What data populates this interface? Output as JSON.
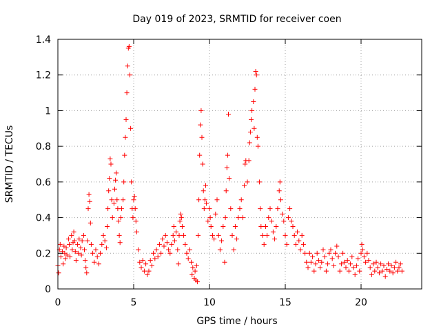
{
  "chart_data": {
    "type": "scatter",
    "title": "Day 019 of 2023, SRMTID for receiver coen",
    "xlabel": "GPS time / hours",
    "ylabel": "SRMTID / TECUs",
    "xlim": [
      0,
      24
    ],
    "ylim": [
      0,
      1.4
    ],
    "xticks": [
      0,
      5,
      10,
      15,
      20
    ],
    "xtick_labels": [
      "0",
      "5",
      "10",
      "15",
      "20"
    ],
    "yticks": [
      0,
      0.2,
      0.4,
      0.6,
      0.8,
      1.0,
      1.2,
      1.4
    ],
    "ytick_labels": [
      "0",
      "0.2",
      "0.4",
      "0.6",
      "0.8",
      "1",
      "1.2",
      "1.4"
    ],
    "grid": true,
    "marker": "plus",
    "colors": {
      "series": "#ff0000",
      "grid": "#a0a0a0",
      "axis": "#000000"
    },
    "series": [
      {
        "name": "SRMTID",
        "points": [
          [
            0.0,
            0.13
          ],
          [
            0.05,
            0.09
          ],
          [
            0.1,
            0.22
          ],
          [
            0.15,
            0.25
          ],
          [
            0.2,
            0.18
          ],
          [
            0.3,
            0.21
          ],
          [
            0.35,
            0.14
          ],
          [
            0.4,
            0.24
          ],
          [
            0.45,
            0.2
          ],
          [
            0.5,
            0.17
          ],
          [
            0.55,
            0.23
          ],
          [
            0.6,
            0.19
          ],
          [
            0.7,
            0.28
          ],
          [
            0.75,
            0.25
          ],
          [
            0.8,
            0.18
          ],
          [
            0.9,
            0.3
          ],
          [
            0.95,
            0.22
          ],
          [
            1.0,
            0.26
          ],
          [
            1.05,
            0.32
          ],
          [
            1.1,
            0.27
          ],
          [
            1.15,
            0.21
          ],
          [
            1.2,
            0.16
          ],
          [
            1.3,
            0.25
          ],
          [
            1.35,
            0.2
          ],
          [
            1.4,
            0.28
          ],
          [
            1.5,
            0.23
          ],
          [
            1.55,
            0.19
          ],
          [
            1.6,
            0.27
          ],
          [
            1.7,
            0.3
          ],
          [
            1.75,
            0.22
          ],
          [
            1.8,
            0.16
          ],
          [
            1.85,
            0.12
          ],
          [
            1.9,
            0.09
          ],
          [
            1.95,
            0.27
          ],
          [
            2.0,
            0.45
          ],
          [
            2.05,
            0.53
          ],
          [
            2.1,
            0.49
          ],
          [
            2.15,
            0.37
          ],
          [
            2.2,
            0.25
          ],
          [
            2.3,
            0.2
          ],
          [
            2.4,
            0.15
          ],
          [
            2.5,
            0.22
          ],
          [
            2.6,
            0.18
          ],
          [
            2.7,
            0.14
          ],
          [
            2.8,
            0.2
          ],
          [
            2.9,
            0.25
          ],
          [
            3.0,
            0.3
          ],
          [
            3.1,
            0.27
          ],
          [
            3.2,
            0.23
          ],
          [
            3.25,
            0.35
          ],
          [
            3.3,
            0.45
          ],
          [
            3.35,
            0.55
          ],
          [
            3.4,
            0.62
          ],
          [
            3.45,
            0.73
          ],
          [
            3.5,
            0.7
          ],
          [
            3.55,
            0.5
          ],
          [
            3.6,
            0.4
          ],
          [
            3.7,
            0.48
          ],
          [
            3.75,
            0.56
          ],
          [
            3.8,
            0.61
          ],
          [
            3.85,
            0.65
          ],
          [
            3.9,
            0.5
          ],
          [
            3.95,
            0.45
          ],
          [
            4.0,
            0.38
          ],
          [
            4.05,
            0.3
          ],
          [
            4.1,
            0.26
          ],
          [
            4.15,
            0.4
          ],
          [
            4.2,
            0.45
          ],
          [
            4.3,
            0.5
          ],
          [
            4.35,
            0.6
          ],
          [
            4.4,
            0.75
          ],
          [
            4.45,
            0.85
          ],
          [
            4.5,
            0.95
          ],
          [
            4.55,
            1.1
          ],
          [
            4.6,
            1.25
          ],
          [
            4.65,
            1.35
          ],
          [
            4.7,
            1.36
          ],
          [
            4.75,
            1.2
          ],
          [
            4.8,
            0.9
          ],
          [
            4.85,
            0.6
          ],
          [
            4.9,
            0.45
          ],
          [
            4.95,
            0.4
          ],
          [
            5.0,
            0.5
          ],
          [
            5.05,
            0.52
          ],
          [
            5.1,
            0.45
          ],
          [
            5.15,
            0.38
          ],
          [
            5.2,
            0.32
          ],
          [
            5.3,
            0.22
          ],
          [
            5.4,
            0.15
          ],
          [
            5.5,
            0.12
          ],
          [
            5.6,
            0.16
          ],
          [
            5.7,
            0.1
          ],
          [
            5.8,
            0.14
          ],
          [
            5.9,
            0.08
          ],
          [
            6.0,
            0.1
          ],
          [
            6.1,
            0.16
          ],
          [
            6.2,
            0.13
          ],
          [
            6.3,
            0.2
          ],
          [
            6.4,
            0.17
          ],
          [
            6.5,
            0.22
          ],
          [
            6.6,
            0.18
          ],
          [
            6.7,
            0.25
          ],
          [
            6.8,
            0.2
          ],
          [
            6.9,
            0.28
          ],
          [
            7.0,
            0.24
          ],
          [
            7.1,
            0.3
          ],
          [
            7.2,
            0.26
          ],
          [
            7.3,
            0.22
          ],
          [
            7.4,
            0.2
          ],
          [
            7.5,
            0.25
          ],
          [
            7.6,
            0.3
          ],
          [
            7.65,
            0.35
          ],
          [
            7.7,
            0.27
          ],
          [
            7.8,
            0.32
          ],
          [
            7.9,
            0.22
          ],
          [
            7.95,
            0.14
          ],
          [
            8.0,
            0.3
          ],
          [
            8.05,
            0.38
          ],
          [
            8.1,
            0.42
          ],
          [
            8.15,
            0.4
          ],
          [
            8.2,
            0.35
          ],
          [
            8.3,
            0.3
          ],
          [
            8.4,
            0.25
          ],
          [
            8.5,
            0.2
          ],
          [
            8.6,
            0.17
          ],
          [
            8.7,
            0.22
          ],
          [
            8.8,
            0.15
          ],
          [
            8.85,
            0.08
          ],
          [
            8.9,
            0.12
          ],
          [
            9.0,
            0.06
          ],
          [
            9.05,
            0.1
          ],
          [
            9.1,
            0.05
          ],
          [
            9.15,
            0.13
          ],
          [
            9.2,
            0.04
          ],
          [
            9.25,
            0.3
          ],
          [
            9.3,
            0.5
          ],
          [
            9.35,
            0.75
          ],
          [
            9.4,
            0.92
          ],
          [
            9.45,
            1.0
          ],
          [
            9.5,
            0.85
          ],
          [
            9.55,
            0.7
          ],
          [
            9.6,
            0.55
          ],
          [
            9.65,
            0.45
          ],
          [
            9.7,
            0.5
          ],
          [
            9.75,
            0.58
          ],
          [
            9.8,
            0.48
          ],
          [
            9.9,
            0.38
          ],
          [
            10.0,
            0.45
          ],
          [
            10.05,
            0.4
          ],
          [
            10.1,
            0.35
          ],
          [
            10.2,
            0.3
          ],
          [
            10.3,
            0.28
          ],
          [
            10.4,
            0.42
          ],
          [
            10.5,
            0.5
          ],
          [
            10.6,
            0.3
          ],
          [
            10.7,
            0.22
          ],
          [
            10.8,
            0.27
          ],
          [
            10.9,
            0.35
          ],
          [
            11.0,
            0.15
          ],
          [
            11.05,
            0.4
          ],
          [
            11.1,
            0.55
          ],
          [
            11.15,
            0.68
          ],
          [
            11.2,
            0.75
          ],
          [
            11.25,
            0.98
          ],
          [
            11.3,
            0.62
          ],
          [
            11.4,
            0.45
          ],
          [
            11.5,
            0.3
          ],
          [
            11.6,
            0.22
          ],
          [
            11.7,
            0.35
          ],
          [
            11.8,
            0.28
          ],
          [
            11.9,
            0.4
          ],
          [
            12.0,
            0.45
          ],
          [
            12.1,
            0.5
          ],
          [
            12.2,
            0.4
          ],
          [
            12.3,
            0.58
          ],
          [
            12.35,
            0.7
          ],
          [
            12.4,
            0.72
          ],
          [
            12.5,
            0.6
          ],
          [
            12.6,
            0.72
          ],
          [
            12.65,
            0.82
          ],
          [
            12.7,
            0.88
          ],
          [
            12.75,
            0.95
          ],
          [
            12.8,
            1.0
          ],
          [
            12.9,
            1.05
          ],
          [
            12.95,
            0.9
          ],
          [
            13.0,
            1.12
          ],
          [
            13.05,
            1.22
          ],
          [
            13.1,
            1.2
          ],
          [
            13.15,
            0.85
          ],
          [
            13.2,
            0.8
          ],
          [
            13.3,
            0.6
          ],
          [
            13.35,
            0.45
          ],
          [
            13.4,
            0.35
          ],
          [
            13.5,
            0.3
          ],
          [
            13.6,
            0.25
          ],
          [
            13.7,
            0.35
          ],
          [
            13.8,
            0.3
          ],
          [
            13.9,
            0.4
          ],
          [
            14.0,
            0.45
          ],
          [
            14.1,
            0.38
          ],
          [
            14.2,
            0.32
          ],
          [
            14.3,
            0.28
          ],
          [
            14.4,
            0.35
          ],
          [
            14.5,
            0.45
          ],
          [
            14.6,
            0.55
          ],
          [
            14.65,
            0.6
          ],
          [
            14.7,
            0.5
          ],
          [
            14.8,
            0.42
          ],
          [
            14.9,
            0.38
          ],
          [
            15.0,
            0.3
          ],
          [
            15.1,
            0.25
          ],
          [
            15.2,
            0.4
          ],
          [
            15.3,
            0.45
          ],
          [
            15.4,
            0.38
          ],
          [
            15.5,
            0.35
          ],
          [
            15.6,
            0.3
          ],
          [
            15.7,
            0.25
          ],
          [
            15.8,
            0.32
          ],
          [
            15.9,
            0.27
          ],
          [
            16.0,
            0.22
          ],
          [
            16.1,
            0.3
          ],
          [
            16.2,
            0.25
          ],
          [
            16.3,
            0.2
          ],
          [
            16.4,
            0.15
          ],
          [
            16.5,
            0.12
          ],
          [
            16.6,
            0.2
          ],
          [
            16.7,
            0.15
          ],
          [
            16.8,
            0.18
          ],
          [
            16.9,
            0.1
          ],
          [
            17.0,
            0.14
          ],
          [
            17.1,
            0.2
          ],
          [
            17.2,
            0.16
          ],
          [
            17.3,
            0.12
          ],
          [
            17.4,
            0.15
          ],
          [
            17.5,
            0.22
          ],
          [
            17.6,
            0.18
          ],
          [
            17.7,
            0.1
          ],
          [
            17.8,
            0.14
          ],
          [
            17.9,
            0.2
          ],
          [
            18.0,
            0.22
          ],
          [
            18.1,
            0.17
          ],
          [
            18.2,
            0.13
          ],
          [
            18.3,
            0.2
          ],
          [
            18.4,
            0.24
          ],
          [
            18.5,
            0.18
          ],
          [
            18.6,
            0.1
          ],
          [
            18.7,
            0.14
          ],
          [
            18.8,
            0.2
          ],
          [
            18.9,
            0.15
          ],
          [
            19.0,
            0.12
          ],
          [
            19.1,
            0.16
          ],
          [
            19.2,
            0.1
          ],
          [
            19.3,
            0.14
          ],
          [
            19.4,
            0.18
          ],
          [
            19.5,
            0.12
          ],
          [
            19.6,
            0.08
          ],
          [
            19.7,
            0.13
          ],
          [
            19.8,
            0.17
          ],
          [
            19.9,
            0.1
          ],
          [
            20.0,
            0.2
          ],
          [
            20.05,
            0.25
          ],
          [
            20.1,
            0.22
          ],
          [
            20.2,
            0.18
          ],
          [
            20.3,
            0.15
          ],
          [
            20.4,
            0.2
          ],
          [
            20.5,
            0.16
          ],
          [
            20.6,
            0.12
          ],
          [
            20.7,
            0.08
          ],
          [
            20.8,
            0.14
          ],
          [
            20.9,
            0.1
          ],
          [
            21.0,
            0.15
          ],
          [
            21.1,
            0.12
          ],
          [
            21.2,
            0.09
          ],
          [
            21.3,
            0.14
          ],
          [
            21.4,
            0.1
          ],
          [
            21.5,
            0.13
          ],
          [
            21.6,
            0.07
          ],
          [
            21.7,
            0.11
          ],
          [
            21.8,
            0.14
          ],
          [
            21.9,
            0.1
          ],
          [
            22.0,
            0.13
          ],
          [
            22.1,
            0.09
          ],
          [
            22.2,
            0.12
          ],
          [
            22.3,
            0.15
          ],
          [
            22.4,
            0.1
          ],
          [
            22.5,
            0.12
          ],
          [
            22.6,
            0.14
          ],
          [
            22.7,
            0.1
          ]
        ]
      }
    ]
  }
}
